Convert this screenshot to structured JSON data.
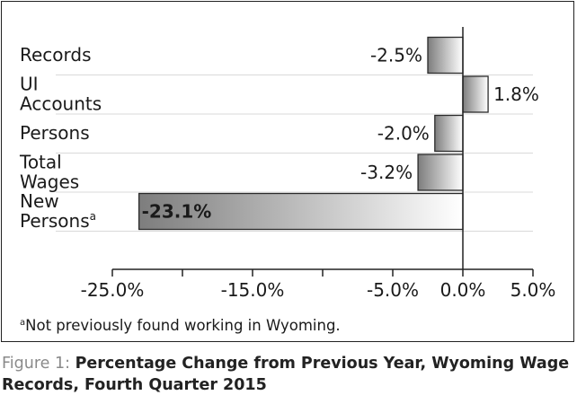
{
  "chart_data": {
    "type": "bar",
    "orientation": "horizontal",
    "categories": [
      {
        "lines": [
          "Records"
        ]
      },
      {
        "lines": [
          "UI",
          "Accounts"
        ]
      },
      {
        "lines": [
          "Persons"
        ]
      },
      {
        "lines": [
          "Total",
          "Wages"
        ]
      },
      {
        "lines": [
          "New",
          "Persons"
        ],
        "sup": "a"
      }
    ],
    "values": [
      -2.5,
      1.8,
      -2.0,
      -3.2,
      -23.1
    ],
    "value_labels": [
      "-2.5%",
      "1.8%",
      "-2.0%",
      "-3.2%",
      "-23.1%"
    ],
    "bold_labels": [
      false,
      false,
      false,
      false,
      true
    ],
    "xlim": [
      -25,
      5
    ],
    "xticks": [
      -25,
      -20,
      -15,
      -10,
      -5,
      0,
      5
    ],
    "xtick_labels": [
      "-25.0%",
      "",
      "-15.0%",
      "",
      "-5.0%",
      "0.0%",
      "5.0%"
    ],
    "grid": true,
    "title": "",
    "xlabel": "",
    "ylabel": ""
  },
  "footnote": {
    "marker": "a",
    "text": "Not previously found working in Wyoming."
  },
  "caption": {
    "lead": "Figure 1: ",
    "text": "Percentage Change from Previous Year, Wyoming Wage Records, Fourth Quarter 2015"
  },
  "colors": {
    "bar_dark": "#7d7d7d",
    "bar_light": "#ffffff",
    "grid": "#d9d9d9",
    "axis": "#222222"
  }
}
